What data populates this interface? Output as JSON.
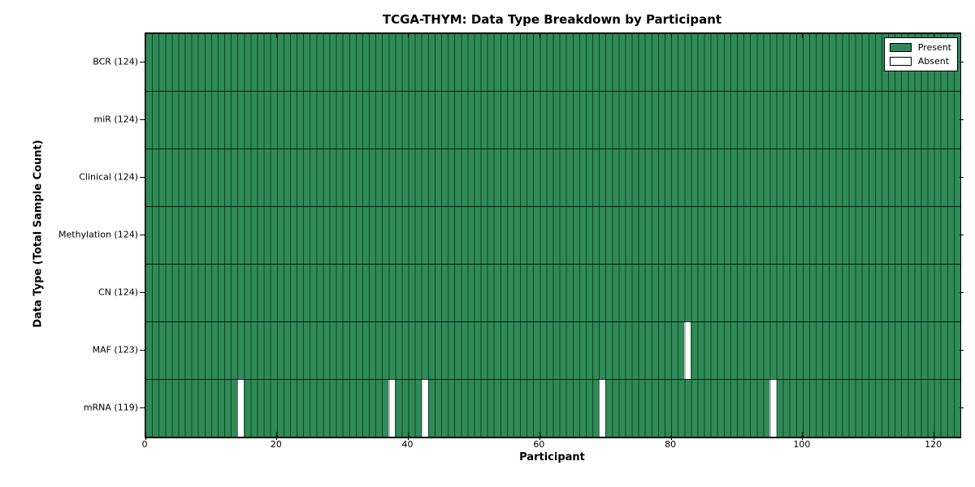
{
  "chart_data": {
    "type": "heatmap",
    "title": "TCGA-THYM: Data Type Breakdown by Participant",
    "xlabel": "Participant",
    "ylabel": "Data Type (Total Sample Count)",
    "n_participants": 124,
    "xlim": [
      0,
      124
    ],
    "x_ticks": [
      0,
      20,
      40,
      60,
      80,
      100,
      120
    ],
    "grid": true,
    "rows": [
      {
        "label": "BCR",
        "total": 124,
        "tick": "BCR (124)",
        "absent_participants": []
      },
      {
        "label": "miR",
        "total": 124,
        "tick": "miR (124)",
        "absent_participants": []
      },
      {
        "label": "Clinical",
        "total": 124,
        "tick": "Clinical (124)",
        "absent_participants": []
      },
      {
        "label": "Methylation",
        "total": 124,
        "tick": "Methylation (124)",
        "absent_participants": []
      },
      {
        "label": "CN",
        "total": 124,
        "tick": "CN (124)",
        "absent_participants": []
      },
      {
        "label": "MAF",
        "total": 123,
        "tick": "MAF (123)",
        "absent_participants": [
          82
        ]
      },
      {
        "label": "mRNA",
        "total": 119,
        "tick": "mRNA (119)",
        "absent_participants": [
          14,
          37,
          42,
          69,
          95
        ]
      }
    ],
    "legend": {
      "position": "upper right",
      "entries": [
        {
          "label": "Present",
          "color": "#2e8b57"
        },
        {
          "label": "Absent",
          "color": "#ffffff"
        }
      ]
    },
    "colors": {
      "present": "#2e8b57",
      "absent": "#ffffff",
      "cell_border": "rgba(0,0,0,0.55)",
      "row_border": "rgba(0,0,0,0.8)",
      "axis": "#000000"
    }
  }
}
